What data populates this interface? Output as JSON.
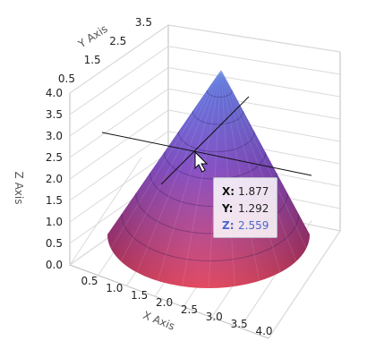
{
  "chart_data": {
    "type": "surface3d",
    "shape": "cone",
    "x_axis": {
      "label": "X Axis",
      "ticks": [
        "0.5",
        "1.0",
        "1.5",
        "2.0",
        "2.5",
        "3.0",
        "3.5",
        "4.0"
      ],
      "range": [
        0.5,
        4.0
      ]
    },
    "y_axis": {
      "label": "Y Axis",
      "ticks": [
        "0.5",
        "1.5",
        "2.5",
        "3.5"
      ],
      "range": [
        0.5,
        3.5
      ]
    },
    "z_axis": {
      "label": "Z Axis",
      "ticks": [
        "0.0",
        "0.5",
        "1.0",
        "1.5",
        "2.0",
        "2.5",
        "3.0",
        "3.5",
        "4.0"
      ],
      "range": [
        0.0,
        4.0
      ]
    },
    "cone": {
      "apex_z": 4.0,
      "base_z": 0.0
    },
    "colors": {
      "top": "#4a6fe0",
      "middle": "#7a3fc0",
      "bottom": "#e0364f"
    },
    "grid": true,
    "tooltip": {
      "x_label": "X:",
      "x_value": "1.877",
      "y_label": "Y:",
      "y_value": "1.292",
      "z_label": "Z:",
      "z_value": "2.559"
    }
  }
}
